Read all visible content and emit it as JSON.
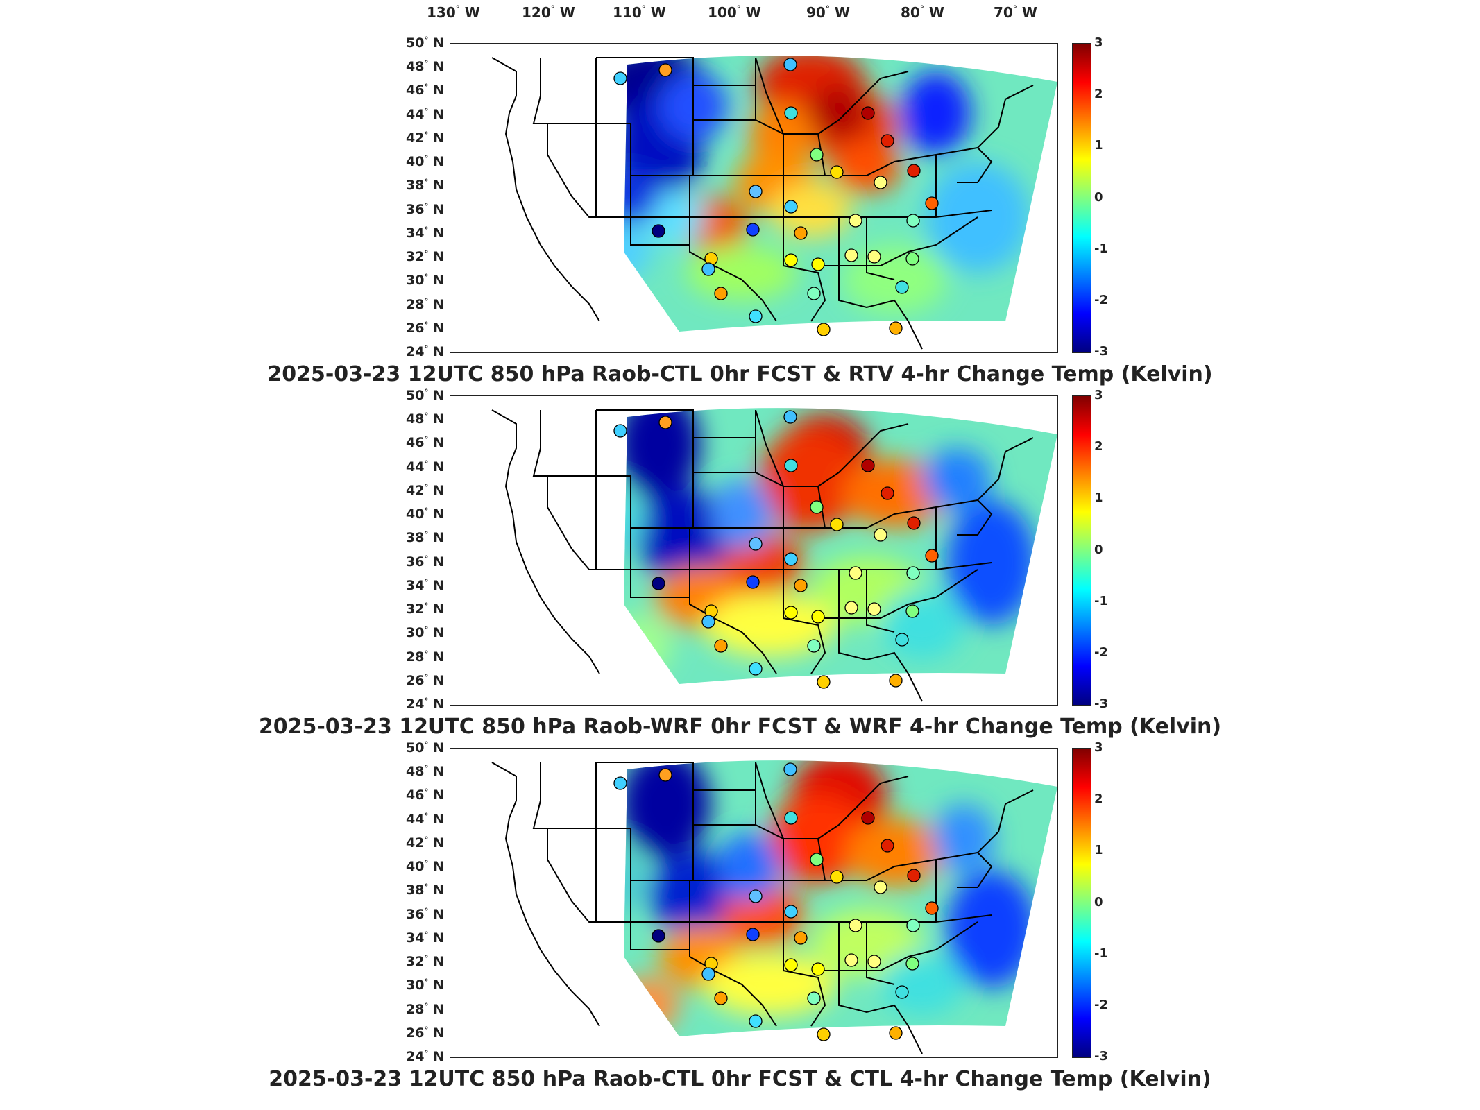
{
  "lon_axis": [
    "130",
    "120",
    "110",
    "100",
    "90",
    "80",
    "70"
  ],
  "lon_hemisphere": "W",
  "lat_hemisphere": "N",
  "lat_labels": [
    "50",
    "48",
    "46",
    "44",
    "42",
    "40",
    "38",
    "36",
    "34",
    "32",
    "30",
    "28",
    "26",
    "24"
  ],
  "colorbar_ticks": [
    "3",
    "2",
    "1",
    "0",
    "-1",
    "-2",
    "-3"
  ],
  "colorbar_range": [
    -3,
    3
  ],
  "colormap": [
    "#800000",
    "#ff0000",
    "#ff8000",
    "#ffff00",
    "#80ff80",
    "#00ffff",
    "#0080ff",
    "#0000ff",
    "#000080"
  ],
  "panels": [
    {
      "caption": "2025-03-23 12UTC 850 hPa Raob-CTL 0hr FCST & RTV 4-hr Change Temp (Kelvin)"
    },
    {
      "caption": "2025-03-23 12UTC 850 hPa Raob-WRF 0hr FCST & WRF 4-hr Change Temp (Kelvin)"
    },
    {
      "caption": "2025-03-23 12UTC 850 hPa Raob-CTL 0hr FCST & CTL 4-hr Change Temp (Kelvin)"
    }
  ]
}
